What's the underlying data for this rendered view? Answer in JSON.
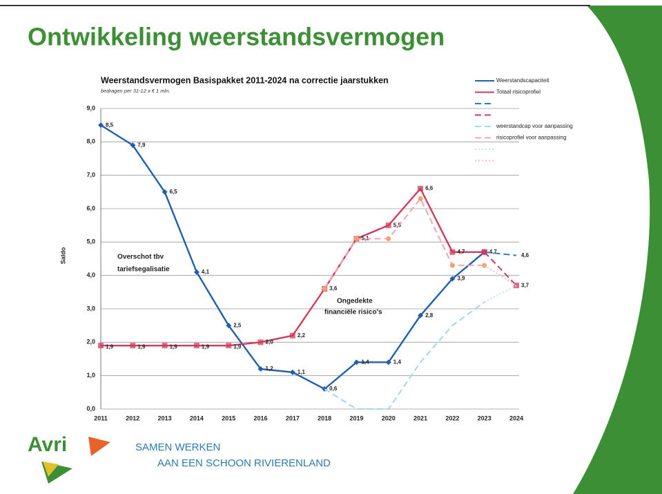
{
  "slide": {
    "title": "Ontwikkeling weerstandsvermogen",
    "footer": {
      "logo": "Avri",
      "line1": "SAMEN WERKEN",
      "line2": "AAN EEN SCHOON RIVIERENLAND"
    }
  },
  "chart_data": {
    "type": "line",
    "title": "Weerstandsvermogen Basispakket 2011-2024 na correctie jaarstukken",
    "subtitle": "bedragen per 31-12 x € 1 mln.",
    "y_label": "Saldo",
    "annotations": [
      "Overschot tbv",
      "tariefsegalisatie",
      "Ongedekte",
      "financiële risico's"
    ],
    "categories": [
      "2011",
      "2012",
      "2013",
      "2014",
      "2015",
      "2016",
      "2017",
      "2018",
      "2019",
      "2020",
      "2021",
      "2022",
      "2023",
      "2024"
    ],
    "ylim": [
      0,
      9
    ],
    "yticks": [
      {
        "value": 0,
        "label": "0,0"
      },
      {
        "value": 1,
        "label": "1,0"
      },
      {
        "value": 2,
        "label": "2,0"
      },
      {
        "value": 3,
        "label": "3,0"
      },
      {
        "value": 4,
        "label": "4,0"
      },
      {
        "value": 5,
        "label": "5,0"
      },
      {
        "value": 6,
        "label": "6,0"
      },
      {
        "value": 7,
        "label": "7,0"
      },
      {
        "value": 8,
        "label": "8,0"
      },
      {
        "value": 9,
        "label": "9,0"
      }
    ],
    "grid": true,
    "series": [
      {
        "name": "Weerstandscapaciteit",
        "color": "#1f5fae",
        "style": "solid",
        "marker": "diamond",
        "values": [
          8.5,
          7.9,
          6.5,
          4.1,
          2.5,
          1.2,
          1.1,
          0.6,
          1.4,
          1.4,
          2.8,
          3.9,
          4.7,
          null
        ],
        "value_labels": [
          "8,5",
          "7,9",
          "6,5",
          "4,1",
          "2,5",
          "1,2",
          "1,1",
          "0,6",
          "1,4",
          "1,4",
          "2,8",
          "3,9",
          "4,7",
          null
        ]
      },
      {
        "name": "Totaal risicoprofiel",
        "color": "#d03a5c",
        "style": "solid",
        "marker": "square",
        "values": [
          1.9,
          1.9,
          1.9,
          1.9,
          1.9,
          2.0,
          2.2,
          3.6,
          5.1,
          5.5,
          6.6,
          4.7,
          4.7,
          null
        ],
        "value_labels": [
          "1,9",
          "1,9",
          "1,9",
          "1,9",
          "1,9",
          "2,0",
          "2,2",
          "3,6",
          "5,1",
          "5,5",
          "6,6",
          "4,7",
          null,
          null
        ]
      },
      {
        "color": "#1f7fd0",
        "style": "dashed",
        "values": [
          null,
          null,
          null,
          null,
          null,
          null,
          null,
          null,
          null,
          null,
          null,
          null,
          4.7,
          4.6
        ],
        "value_labels": [
          null,
          null,
          null,
          null,
          null,
          null,
          null,
          null,
          null,
          null,
          null,
          null,
          null,
          "4,6"
        ]
      },
      {
        "color": "#d03a5c",
        "style": "dashed",
        "marker": "square",
        "values": [
          null,
          null,
          null,
          null,
          null,
          null,
          null,
          null,
          null,
          null,
          null,
          null,
          4.7,
          3.7
        ],
        "value_labels": [
          null,
          null,
          null,
          null,
          null,
          null,
          null,
          null,
          null,
          null,
          null,
          null,
          null,
          "3,7"
        ]
      },
      {
        "name": "weerstandcap voor aanpassing",
        "color": "#9fd6f2",
        "style": "dashed",
        "values": [
          null,
          null,
          null,
          null,
          null,
          null,
          null,
          0.6,
          0.0,
          0.0,
          1.4,
          2.5,
          3.2,
          null
        ]
      },
      {
        "name": "risicoprofiel voor aanpassing",
        "color": "#f3a3b3",
        "style": "dashed",
        "marker": "circle",
        "values": [
          null,
          null,
          null,
          null,
          null,
          null,
          null,
          3.6,
          5.1,
          5.1,
          6.3,
          4.3,
          4.3,
          null
        ]
      },
      {
        "color": "#bfe4f6",
        "style": "dotted",
        "values": [
          null,
          null,
          null,
          null,
          null,
          null,
          null,
          null,
          null,
          null,
          null,
          null,
          3.2,
          3.7
        ]
      },
      {
        "color": "#f5b8c4",
        "style": "dotted",
        "values": [
          null,
          null,
          null,
          null,
          null,
          null,
          null,
          null,
          null,
          null,
          null,
          null,
          4.3,
          3.7
        ]
      }
    ]
  }
}
